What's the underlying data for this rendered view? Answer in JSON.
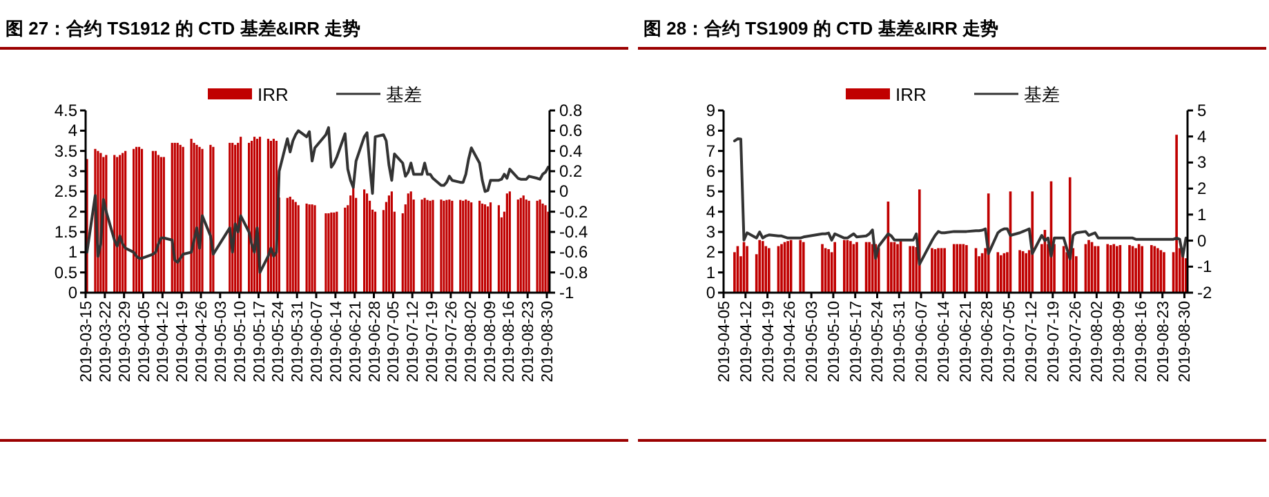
{
  "chart_data": [
    {
      "type": "bar",
      "title": "图 27：合约 TS1912 的 CTD 基差&IRR 走势",
      "legend": "top",
      "x": [
        "2019-03-15",
        "2019-03-18",
        "2019-03-19",
        "2019-03-20",
        "2019-03-21",
        "2019-03-22",
        "2019-03-25",
        "2019-03-26",
        "2019-03-27",
        "2019-03-28",
        "2019-03-29",
        "2019-04-01",
        "2019-04-02",
        "2019-04-03",
        "2019-04-04",
        "2019-04-08",
        "2019-04-09",
        "2019-04-10",
        "2019-04-11",
        "2019-04-12",
        "2019-04-15",
        "2019-04-16",
        "2019-04-17",
        "2019-04-18",
        "2019-04-19",
        "2019-04-22",
        "2019-04-23",
        "2019-04-24",
        "2019-04-25",
        "2019-04-26",
        "2019-04-29",
        "2019-04-30",
        "2019-05-06",
        "2019-05-07",
        "2019-05-08",
        "2019-05-09",
        "2019-05-10",
        "2019-05-13",
        "2019-05-14",
        "2019-05-15",
        "2019-05-16",
        "2019-05-17",
        "2019-05-20",
        "2019-05-21",
        "2019-05-22",
        "2019-05-23",
        "2019-05-24",
        "2019-05-27",
        "2019-05-28",
        "2019-05-29",
        "2019-05-30",
        "2019-05-31",
        "2019-06-03",
        "2019-06-04",
        "2019-06-05",
        "2019-06-06",
        "2019-06-10",
        "2019-06-11",
        "2019-06-12",
        "2019-06-13",
        "2019-06-14",
        "2019-06-17",
        "2019-06-18",
        "2019-06-19",
        "2019-06-20",
        "2019-06-21",
        "2019-06-24",
        "2019-06-25",
        "2019-06-26",
        "2019-06-27",
        "2019-06-28",
        "2019-07-01",
        "2019-07-02",
        "2019-07-03",
        "2019-07-04",
        "2019-07-05",
        "2019-07-08",
        "2019-07-09",
        "2019-07-10",
        "2019-07-11",
        "2019-07-12",
        "2019-07-15",
        "2019-07-16",
        "2019-07-17",
        "2019-07-18",
        "2019-07-19",
        "2019-07-22",
        "2019-07-23",
        "2019-07-24",
        "2019-07-25",
        "2019-07-26",
        "2019-07-29",
        "2019-07-30",
        "2019-07-31",
        "2019-08-01",
        "2019-08-02",
        "2019-08-05",
        "2019-08-06",
        "2019-08-07",
        "2019-08-08",
        "2019-08-09",
        "2019-08-12",
        "2019-08-13",
        "2019-08-14",
        "2019-08-15",
        "2019-08-16",
        "2019-08-19",
        "2019-08-20",
        "2019-08-21",
        "2019-08-22",
        "2019-08-23",
        "2019-08-26",
        "2019-08-27",
        "2019-08-28",
        "2019-08-29",
        "2019-08-30"
      ],
      "series": [
        {
          "name": "IRR",
          "color": "#c00000",
          "values": [
            3.3,
            3.55,
            3.5,
            3.45,
            3.35,
            3.4,
            3.4,
            3.35,
            3.4,
            3.45,
            3.5,
            3.55,
            3.6,
            3.6,
            3.55,
            3.5,
            3.5,
            3.4,
            3.35,
            3.35,
            3.7,
            3.7,
            3.7,
            3.65,
            3.6,
            3.8,
            3.7,
            3.65,
            3.6,
            3.55,
            3.65,
            3.6,
            3.7,
            3.7,
            3.65,
            3.7,
            3.85,
            3.7,
            3.75,
            3.85,
            3.8,
            3.85,
            3.8,
            3.75,
            3.8,
            3.75,
            2.35,
            2.34,
            2.37,
            2.3,
            2.24,
            2.16,
            2.2,
            2.18,
            2.18,
            2.16,
            1.96,
            1.96,
            1.98,
            1.98,
            2.0,
            2.1,
            2.16,
            2.4,
            2.6,
            2.34,
            2.55,
            2.45,
            2.27,
            2.05,
            2.0,
            2.04,
            2.24,
            2.4,
            2.5,
            2.0,
            1.96,
            2.18,
            2.45,
            2.5,
            2.3,
            2.3,
            2.34,
            2.29,
            2.27,
            2.29,
            2.3,
            2.27,
            2.29,
            2.3,
            2.27,
            2.29,
            2.27,
            2.3,
            2.27,
            2.23,
            2.27,
            2.2,
            2.18,
            2.13,
            2.23,
            2.16,
            1.86,
            2.0,
            2.45,
            2.5,
            2.3,
            2.34,
            2.4,
            2.3,
            2.27,
            2.27,
            2.3,
            2.2,
            2.16,
            2.0
          ]
        },
        {
          "name": "基差",
          "type": "line",
          "axis": "y2",
          "color": "#333333",
          "values": [
            -0.6,
            -0.04,
            -0.64,
            -0.52,
            -0.08,
            -0.2,
            -0.48,
            -0.54,
            -0.44,
            -0.52,
            -0.56,
            -0.6,
            -0.64,
            -0.66,
            -0.66,
            -0.62,
            -0.6,
            -0.52,
            -0.46,
            -0.46,
            -0.48,
            -0.68,
            -0.7,
            -0.66,
            -0.62,
            -0.6,
            -0.48,
            -0.36,
            -0.56,
            -0.24,
            -0.44,
            -0.62,
            -0.36,
            -0.6,
            -0.32,
            -0.4,
            -0.24,
            -0.4,
            -0.52,
            -0.6,
            -0.36,
            -0.8,
            -0.64,
            -0.56,
            -0.64,
            -0.6,
            0.2,
            0.52,
            0.39,
            0.5,
            0.56,
            0.6,
            0.54,
            0.59,
            0.3,
            0.43,
            0.56,
            0.63,
            0.24,
            0.28,
            0.34,
            0.57,
            0.22,
            0.11,
            0.04,
            0.3,
            0.54,
            0.58,
            0.26,
            -0.02,
            0.54,
            0.56,
            0.5,
            0.26,
            0.11,
            0.37,
            0.28,
            0.15,
            0.19,
            0.28,
            0.17,
            0.17,
            0.28,
            0.17,
            0.17,
            0.13,
            0.06,
            0.06,
            0.09,
            0.15,
            0.11,
            0.09,
            0.09,
            0.17,
            0.32,
            0.43,
            0.28,
            0.11,
            0,
            0.01,
            0.11,
            0.11,
            0.12,
            0.17,
            0.13,
            0.22,
            0.13,
            0.12,
            0.12,
            0.12,
            0.15,
            0.13,
            0.12,
            0.17,
            0.19,
            0.24
          ]
        }
      ],
      "xlim": [
        "2019-03-15",
        "2019-08-31"
      ],
      "xticks": [
        "2019-03-15",
        "2019-03-22",
        "2019-03-29",
        "2019-04-05",
        "2019-04-12",
        "2019-04-19",
        "2019-04-26",
        "2019-05-03",
        "2019-05-10",
        "2019-05-17",
        "2019-05-24",
        "2019-05-31",
        "2019-06-07",
        "2019-06-14",
        "2019-06-21",
        "2019-06-28",
        "2019-07-05",
        "2019-07-12",
        "2019-07-19",
        "2019-07-26",
        "2019-08-02",
        "2019-08-09",
        "2019-08-16",
        "2019-08-23",
        "2019-08-30"
      ],
      "ylim": [
        0,
        4.5
      ],
      "yticks": [
        0,
        0.5,
        1,
        1.5,
        2,
        2.5,
        3,
        3.5,
        4,
        4.5
      ],
      "y2lim": [
        -1,
        0.8
      ],
      "y2ticks": [
        -1,
        -0.8,
        -0.6,
        -0.4,
        -0.2,
        0,
        0.2,
        0.4,
        0.6,
        0.8
      ]
    },
    {
      "type": "bar",
      "title": "图 28：合约 TS1909 的 CTD 基差&IRR 走势",
      "legend": "top",
      "x": [
        "2019-04-08",
        "2019-04-09",
        "2019-04-10",
        "2019-04-11",
        "2019-04-12",
        "2019-04-15",
        "2019-04-16",
        "2019-04-17",
        "2019-04-18",
        "2019-04-19",
        "2019-04-22",
        "2019-04-23",
        "2019-04-24",
        "2019-04-25",
        "2019-04-26",
        "2019-04-29",
        "2019-04-30",
        "2019-05-06",
        "2019-05-07",
        "2019-05-08",
        "2019-05-09",
        "2019-05-10",
        "2019-05-13",
        "2019-05-14",
        "2019-05-15",
        "2019-05-16",
        "2019-05-17",
        "2019-05-20",
        "2019-05-21",
        "2019-05-22",
        "2019-05-23",
        "2019-05-24",
        "2019-05-27",
        "2019-05-28",
        "2019-05-29",
        "2019-05-30",
        "2019-05-31",
        "2019-06-03",
        "2019-06-04",
        "2019-06-05",
        "2019-06-06",
        "2019-06-10",
        "2019-06-11",
        "2019-06-12",
        "2019-06-13",
        "2019-06-14",
        "2019-06-17",
        "2019-06-18",
        "2019-06-19",
        "2019-06-20",
        "2019-06-21",
        "2019-06-24",
        "2019-06-25",
        "2019-06-26",
        "2019-06-27",
        "2019-06-28",
        "2019-07-01",
        "2019-07-02",
        "2019-07-03",
        "2019-07-04",
        "2019-07-05",
        "2019-07-08",
        "2019-07-09",
        "2019-07-10",
        "2019-07-11",
        "2019-07-12",
        "2019-07-15",
        "2019-07-16",
        "2019-07-17",
        "2019-07-18",
        "2019-07-19",
        "2019-07-22",
        "2019-07-23",
        "2019-07-24",
        "2019-07-25",
        "2019-07-26",
        "2019-07-29",
        "2019-07-30",
        "2019-07-31",
        "2019-08-01",
        "2019-08-02",
        "2019-08-05",
        "2019-08-06",
        "2019-08-07",
        "2019-08-08",
        "2019-08-09",
        "2019-08-12",
        "2019-08-13",
        "2019-08-14",
        "2019-08-15",
        "2019-08-16",
        "2019-08-19",
        "2019-08-20",
        "2019-08-21",
        "2019-08-22",
        "2019-08-23",
        "2019-08-26",
        "2019-08-27",
        "2019-08-28",
        "2019-08-29",
        "2019-08-30"
      ],
      "series": [
        {
          "name": "IRR",
          "color": "#c00000",
          "values": [
            2.0,
            2.3,
            1.8,
            2.5,
            2.3,
            1.9,
            2.6,
            2.55,
            2.3,
            2.2,
            2.3,
            2.4,
            2.5,
            2.55,
            2.6,
            2.6,
            2.5,
            2.4,
            2.2,
            2.15,
            2.0,
            2.5,
            2.6,
            2.6,
            2.55,
            2.4,
            2.5,
            2.5,
            2.5,
            2.4,
            2.4,
            2.2,
            4.5,
            2.5,
            2.5,
            2.4,
            2.55,
            2.3,
            2.3,
            2.25,
            5.1,
            2.2,
            2.15,
            2.2,
            2.2,
            2.2,
            2.4,
            2.4,
            2.4,
            2.4,
            2.35,
            2.2,
            1.8,
            1.95,
            2.2,
            4.9,
            2.0,
            1.85,
            1.95,
            2.0,
            5.0,
            2.1,
            2.05,
            1.95,
            2.1,
            5.0,
            2.4,
            3.1,
            2.4,
            5.5,
            2.4,
            2.3,
            2.0,
            5.7,
            2.2,
            1.8,
            2.4,
            2.6,
            2.5,
            2.3,
            2.3,
            2.4,
            2.35,
            2.4,
            2.3,
            2.35,
            2.35,
            2.3,
            2.2,
            2.4,
            2.3,
            2.35,
            2.3,
            2.2,
            2.1,
            2.0,
            2.0,
            7.8,
            2.2,
            2.0,
            1.7
          ]
        },
        {
          "name": "基差",
          "type": "line",
          "axis": "y2",
          "color": "#333333",
          "values": [
            3.83,
            3.91,
            3.9,
            0.02,
            0.3,
            0.1,
            0.33,
            0.1,
            0.18,
            0.22,
            0.18,
            0.18,
            0.14,
            0.1,
            0.1,
            0.1,
            0.14,
            0.26,
            0.26,
            0.29,
            0.02,
            0.26,
            0.1,
            0.1,
            0.18,
            0.26,
            0.14,
            0.18,
            0.26,
            0.41,
            -0.68,
            -0.21,
            0.26,
            0.18,
            0.02,
            0.02,
            0.02,
            0.02,
            0.02,
            0.26,
            -0.91,
            0.0,
            0.2,
            0.35,
            0.3,
            0.3,
            0.35,
            0.35,
            0.35,
            0.35,
            0.35,
            0.38,
            0.38,
            0.4,
            0.45,
            -0.5,
            0.3,
            0.4,
            0.45,
            0.45,
            0.2,
            0.3,
            0.35,
            0.4,
            0.45,
            -0.5,
            0.2,
            0.0,
            0.1,
            -0.6,
            0.1,
            0.1,
            -0.3,
            -0.7,
            0.2,
            0.3,
            0.35,
            0.2,
            0.25,
            0.3,
            0.1,
            0.1,
            0.1,
            0.1,
            0.1,
            0.1,
            0.1,
            0.1,
            0.05,
            0.05,
            0.05,
            0.05,
            0.05,
            0.05,
            0.05,
            0.05,
            0.05,
            0.1,
            0.05,
            -0.6,
            0.1
          ]
        }
      ],
      "xlim": [
        "2019-04-05",
        "2019-08-31"
      ],
      "xticks": [
        "2019-04-05",
        "2019-04-12",
        "2019-04-19",
        "2019-04-26",
        "2019-05-03",
        "2019-05-10",
        "2019-05-17",
        "2019-05-24",
        "2019-05-31",
        "2019-06-07",
        "2019-06-14",
        "2019-06-21",
        "2019-06-28",
        "2019-07-05",
        "2019-07-12",
        "2019-07-19",
        "2019-07-26",
        "2019-08-02",
        "2019-08-09",
        "2019-08-16",
        "2019-08-23",
        "2019-08-30"
      ],
      "ylim": [
        0,
        9
      ],
      "yticks": [
        0,
        1,
        2,
        3,
        4,
        5,
        6,
        7,
        8,
        9
      ],
      "y2lim": [
        -2,
        5
      ],
      "y2ticks": [
        -2,
        -1,
        0,
        1,
        2,
        3,
        4,
        5
      ]
    }
  ]
}
